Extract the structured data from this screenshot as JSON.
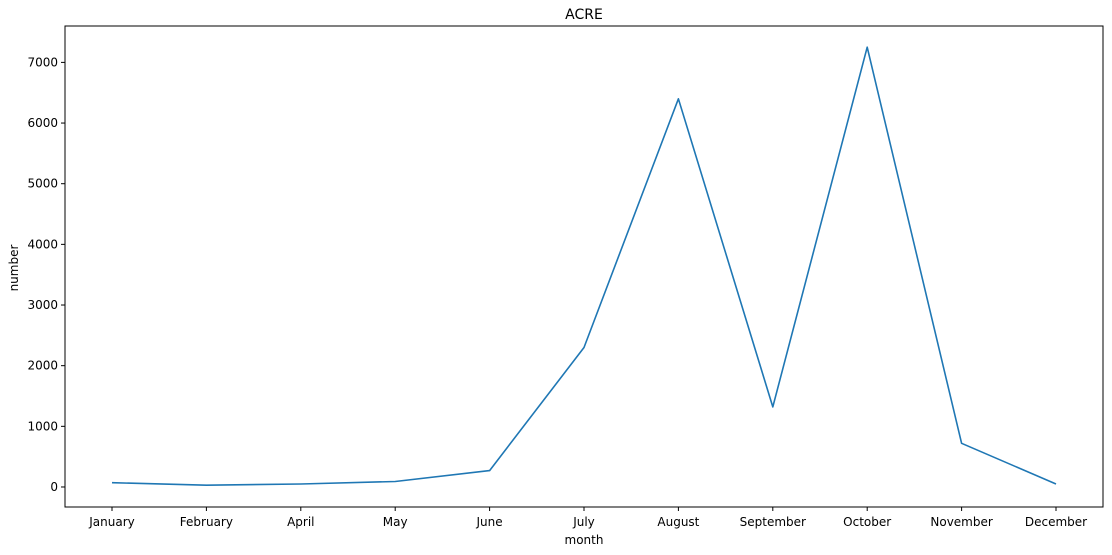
{
  "chart_data": {
    "type": "line",
    "title": "ACRE",
    "xlabel": "month",
    "ylabel": "number",
    "categories": [
      "January",
      "February",
      "April",
      "May",
      "June",
      "July",
      "August",
      "September",
      "October",
      "November",
      "December"
    ],
    "series": [
      {
        "values": [
          70,
          30,
          50,
          90,
          270,
          2300,
          6400,
          1320,
          7250,
          720,
          50
        ],
        "color": "#1f77b4"
      }
    ],
    "ylim": [
      -330,
      7600
    ],
    "yticks": [
      0,
      1000,
      2000,
      3000,
      4000,
      5000,
      6000,
      7000
    ],
    "grid": false,
    "legend": "none"
  }
}
